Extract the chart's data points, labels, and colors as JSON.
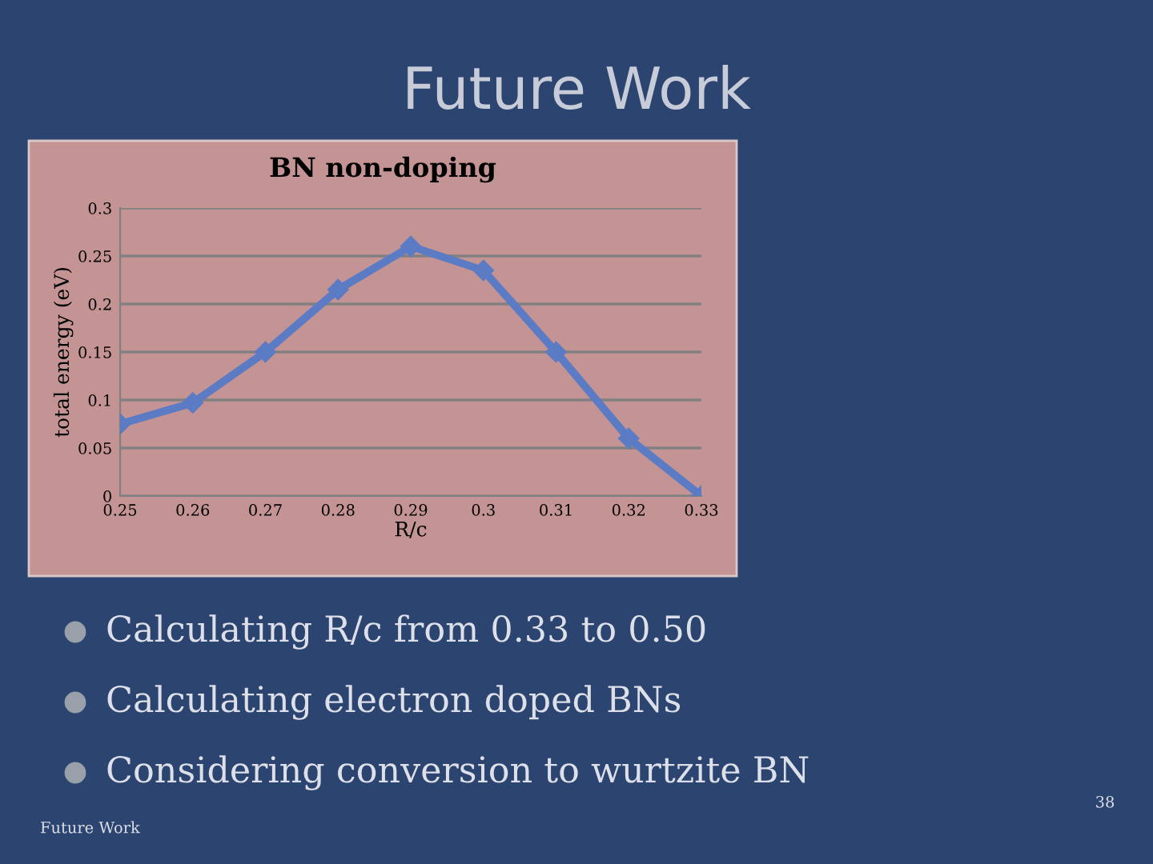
{
  "chart_data": {
    "type": "line",
    "title": "BN non-doping",
    "xlabel": "R/c",
    "ylabel": "total energy (eV)",
    "x": [
      0.25,
      0.26,
      0.27,
      0.28,
      0.29,
      0.3,
      0.31,
      0.32,
      0.33
    ],
    "series": [
      {
        "color": "#5b7cc4",
        "values": [
          0.075,
          0.097,
          0.15,
          0.215,
          0.26,
          0.235,
          0.15,
          0.06,
          0.0
        ]
      }
    ],
    "xlim": [
      0.25,
      0.33
    ],
    "xticks": [
      0.25,
      0.26,
      0.27,
      0.28,
      0.29,
      0.3,
      0.31,
      0.32,
      0.33
    ],
    "ylim": [
      0,
      0.3
    ],
    "yticks": [
      0,
      0.05,
      0.1,
      0.15,
      0.2,
      0.25,
      0.3
    ],
    "grid": "y",
    "marker": "diamond",
    "line_style": "solid",
    "annotations": [
      "Future Work",
      "Calculating R/c from 0.33 to 0.50",
      "Calculating electron doped BNs",
      "Considering conversion to wurtzite BN",
      "Future Work",
      "38"
    ]
  }
}
